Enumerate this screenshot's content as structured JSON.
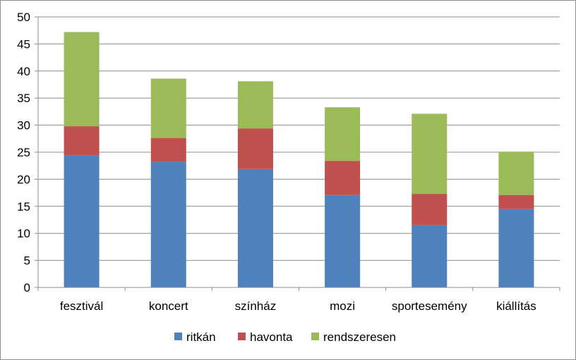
{
  "chart_data": {
    "type": "bar",
    "stacked": true,
    "categories": [
      "fesztivál",
      "koncert",
      "színház",
      "mozi",
      "sportesemény",
      "kiállítás"
    ],
    "series": [
      {
        "name": "ritkán",
        "color": "#4f81bd",
        "values": [
          24.4,
          23.2,
          21.9,
          17.1,
          11.5,
          14.5
        ]
      },
      {
        "name": "havonta",
        "color": "#c0504d",
        "values": [
          5.4,
          4.4,
          7.5,
          6.3,
          5.8,
          2.6
        ]
      },
      {
        "name": "rendszeresen",
        "color": "#9bbb59",
        "values": [
          17.4,
          11.0,
          8.7,
          9.9,
          14.8,
          8.0
        ]
      }
    ],
    "ylim": [
      0,
      50
    ],
    "yticks": [
      "0",
      "5",
      "10",
      "15",
      "20",
      "25",
      "30",
      "35",
      "40",
      "45",
      "50"
    ],
    "grid": true,
    "legend_position": "bottom",
    "title": "",
    "xlabel": "",
    "ylabel": ""
  }
}
